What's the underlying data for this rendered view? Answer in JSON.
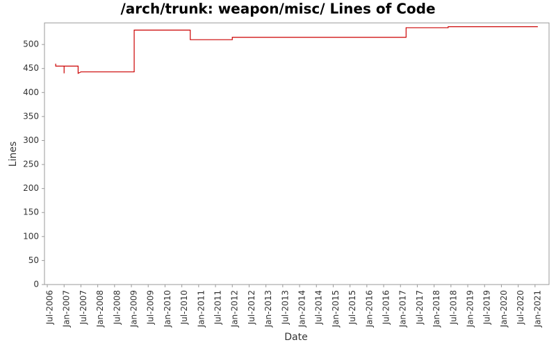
{
  "chart_data": {
    "type": "line",
    "title": "/arch/trunk: weapon/misc/ Lines of Code",
    "x_label": "Date",
    "y_label": "Lines",
    "x": [
      "2006-10",
      "2006-10",
      "2007-01",
      "2007-01",
      "2007-01",
      "2007-06",
      "2007-06",
      "2007-07",
      "2009-02",
      "2009-02",
      "2010-10",
      "2010-10",
      "2012-01",
      "2012-01",
      "2017-03",
      "2017-03",
      "2018-06",
      "2018-06",
      "2021-02"
    ],
    "series": [
      {
        "name": "Lines",
        "color": "#cc0000",
        "values": [
          460,
          455,
          455,
          440,
          455,
          455,
          440,
          443,
          443,
          530,
          530,
          510,
          510,
          515,
          515,
          535,
          535,
          537,
          537
        ]
      }
    ],
    "xlim": [
      "2006-06",
      "2021-06"
    ],
    "xticks": [
      {
        "value": "2006-07",
        "label": "Jul-2006"
      },
      {
        "value": "2007-01",
        "label": "Jan-2007"
      },
      {
        "value": "2007-07",
        "label": "Jul-2007"
      },
      {
        "value": "2008-01",
        "label": "Jan-2008"
      },
      {
        "value": "2008-07",
        "label": "Jul-2008"
      },
      {
        "value": "2009-01",
        "label": "Jan-2009"
      },
      {
        "value": "2009-07",
        "label": "Jul-2009"
      },
      {
        "value": "2010-01",
        "label": "Jan-2010"
      },
      {
        "value": "2010-07",
        "label": "Jul-2010"
      },
      {
        "value": "2011-01",
        "label": "Jan-2011"
      },
      {
        "value": "2011-07",
        "label": "Jul-2011"
      },
      {
        "value": "2012-01",
        "label": "Jan-2012"
      },
      {
        "value": "2012-07",
        "label": "Jul-2012"
      },
      {
        "value": "2013-01",
        "label": "Jan-2013"
      },
      {
        "value": "2013-07",
        "label": "Jul-2013"
      },
      {
        "value": "2014-01",
        "label": "Jan-2014"
      },
      {
        "value": "2014-07",
        "label": "Jul-2014"
      },
      {
        "value": "2015-01",
        "label": "Jan-2015"
      },
      {
        "value": "2015-07",
        "label": "Jul-2015"
      },
      {
        "value": "2016-01",
        "label": "Jan-2016"
      },
      {
        "value": "2016-07",
        "label": "Jul-2016"
      },
      {
        "value": "2017-01",
        "label": "Jan-2017"
      },
      {
        "value": "2017-07",
        "label": "Jul-2017"
      },
      {
        "value": "2018-01",
        "label": "Jan-2018"
      },
      {
        "value": "2018-07",
        "label": "Jul-2018"
      },
      {
        "value": "2019-01",
        "label": "Jan-2019"
      },
      {
        "value": "2019-07",
        "label": "Jul-2019"
      },
      {
        "value": "2020-01",
        "label": "Jan-2020"
      },
      {
        "value": "2020-07",
        "label": "Jul-2020"
      },
      {
        "value": "2021-01",
        "label": "Jan-2021"
      }
    ],
    "ylim": [
      0,
      545
    ],
    "yticks": [
      0,
      50,
      100,
      150,
      200,
      250,
      300,
      350,
      400,
      450,
      500
    ],
    "grid": false
  }
}
